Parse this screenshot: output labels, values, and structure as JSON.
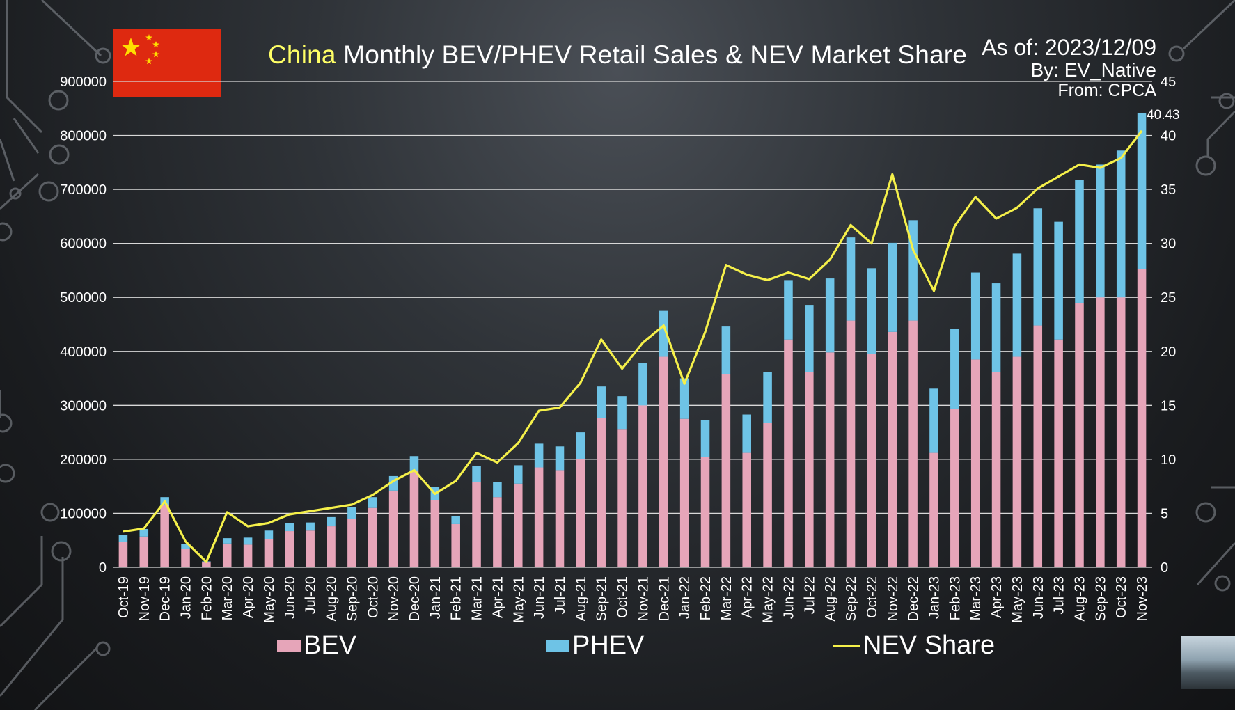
{
  "header": {
    "title_highlight": "China",
    "title_rest": " Monthly BEV/PHEV Retail Sales & NEV Market Share",
    "as_of": "As of: 2023/12/09",
    "by": "By: EV_Native",
    "from": "From: CPCA"
  },
  "legend": {
    "bev": "BEV",
    "phev": "PHEV",
    "share": "NEV Share"
  },
  "colors": {
    "bev": "#e6a5b9",
    "phev": "#6ec3e6",
    "share": "#f5f04a",
    "grid": "#d8d8d8",
    "text": "#ffffff",
    "highlight": "#ffff66",
    "flag": "#de2910",
    "flag_star": "#ffde00"
  },
  "chart_data": {
    "type": "bar",
    "stacked": true,
    "secondary_series_type": "line",
    "categories": [
      "Oct-19",
      "Nov-19",
      "Dec-19",
      "Jan-20",
      "Feb-20",
      "Mar-20",
      "Apr-20",
      "May-20",
      "Jun-20",
      "Jul-20",
      "Aug-20",
      "Sep-20",
      "Oct-20",
      "Nov-20",
      "Dec-20",
      "Jan-21",
      "Feb-21",
      "Mar-21",
      "Apr-21",
      "May-21",
      "Jun-21",
      "Jul-21",
      "Aug-21",
      "Sep-21",
      "Oct-21",
      "Nov-21",
      "Dec-21",
      "Jan-22",
      "Feb-22",
      "Mar-22",
      "Apr-22",
      "May-22",
      "Jun-22",
      "Jul-22",
      "Aug-22",
      "Sep-22",
      "Oct-22",
      "Nov-22",
      "Dec-22",
      "Jan-23",
      "Feb-23",
      "Mar-23",
      "Apr-23",
      "May-23",
      "Jun-23",
      "Jul-23",
      "Aug-23",
      "Sep-23",
      "Oct-23",
      "Nov-23"
    ],
    "series": [
      {
        "name": "BEV",
        "axis": "left",
        "values": [
          47000,
          57000,
          115000,
          34000,
          9000,
          44000,
          42000,
          52000,
          67000,
          68000,
          76000,
          90000,
          110000,
          142000,
          178000,
          125000,
          80000,
          158000,
          130000,
          155000,
          185000,
          180000,
          200000,
          276000,
          255000,
          300000,
          390000,
          275000,
          205000,
          358000,
          212000,
          267000,
          422000,
          362000,
          398000,
          457000,
          395000,
          436000,
          457000,
          212000,
          294000,
          385000,
          362000,
          390000,
          448000,
          422000,
          490000,
          500000,
          500000,
          552000
        ]
      },
      {
        "name": "PHEV",
        "axis": "left",
        "values": [
          13000,
          14000,
          15000,
          9000,
          2000,
          10000,
          13000,
          16000,
          15000,
          15000,
          17000,
          21000,
          20000,
          27000,
          28000,
          24000,
          15000,
          29000,
          28000,
          34000,
          44000,
          44000,
          50000,
          59000,
          62000,
          79000,
          85000,
          75000,
          68000,
          88000,
          71000,
          95000,
          110000,
          124000,
          137000,
          154000,
          159000,
          165000,
          186000,
          119000,
          147000,
          161000,
          164000,
          191000,
          217000,
          218000,
          228000,
          246000,
          272000,
          290000
        ]
      },
      {
        "name": "NEV Share",
        "axis": "right",
        "type": "line",
        "values": [
          3.3,
          3.6,
          6.1,
          2.4,
          0.5,
          5.1,
          3.8,
          4.1,
          4.9,
          5.2,
          5.5,
          5.8,
          6.7,
          8.0,
          9.0,
          6.8,
          8.0,
          10.6,
          9.7,
          11.5,
          14.5,
          14.8,
          17.1,
          21.1,
          18.4,
          20.8,
          22.4,
          17.0,
          21.8,
          28.0,
          27.1,
          26.6,
          27.3,
          26.7,
          28.5,
          31.7,
          30.0,
          36.4,
          29.4,
          25.6,
          31.6,
          34.3,
          32.3,
          33.3,
          35.1,
          36.2,
          37.3,
          37.0,
          37.9,
          40.43
        ]
      }
    ],
    "annotations": [
      {
        "category": "Nov-23",
        "series": "NEV Share",
        "label": "40.43"
      }
    ],
    "ylim": [
      0,
      900000
    ],
    "yticks": [
      0,
      100000,
      200000,
      300000,
      400000,
      500000,
      600000,
      700000,
      800000,
      900000
    ],
    "y2lim": [
      0,
      45
    ],
    "y2ticks": [
      0,
      5,
      10,
      15,
      20,
      25,
      30,
      35,
      40,
      45
    ],
    "grid": true,
    "legend_position": "bottom"
  }
}
